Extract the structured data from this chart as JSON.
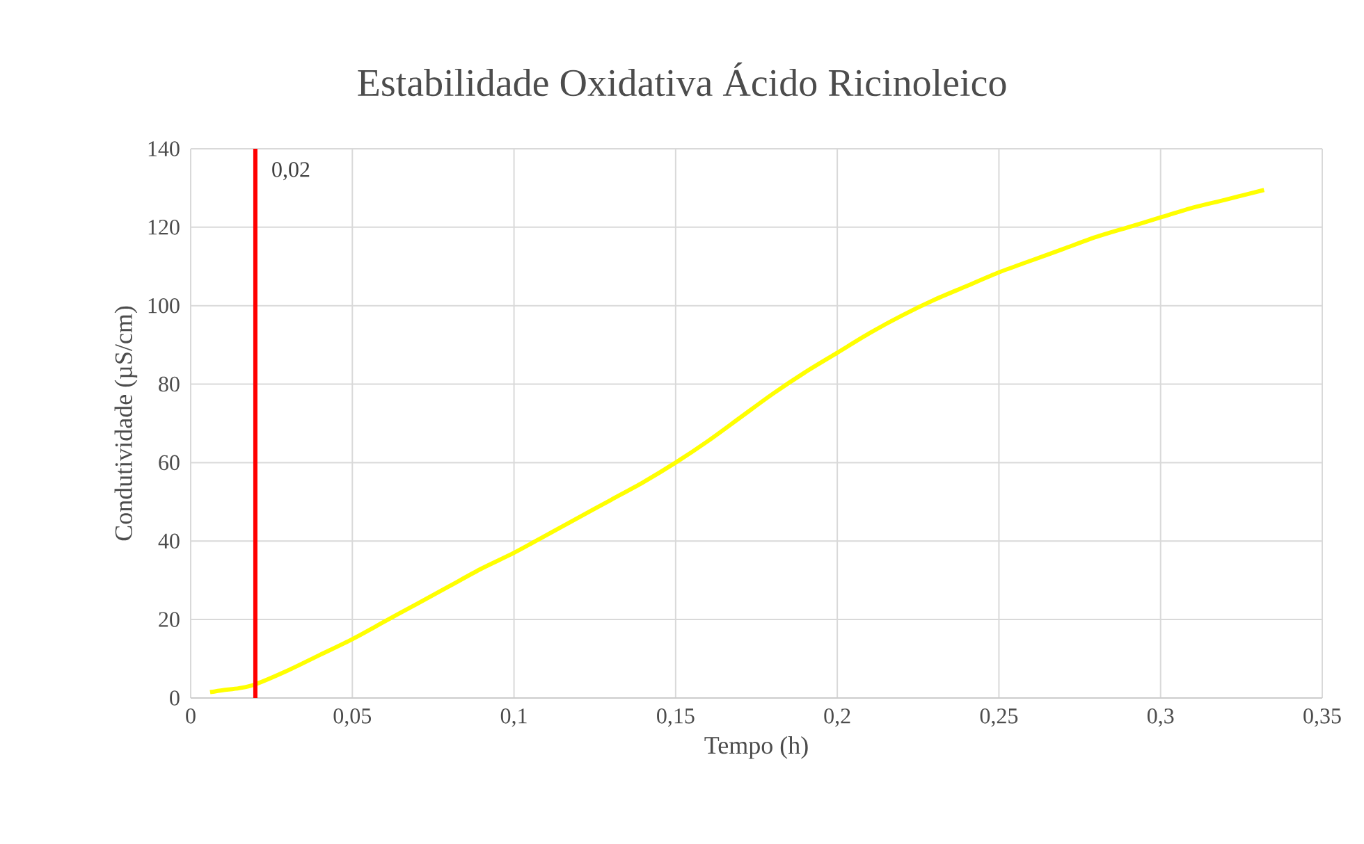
{
  "chart_data": {
    "type": "line",
    "title": "Estabilidade Oxidativa Ácido Ricinoleico",
    "xlabel": "Tempo (h)",
    "ylabel": "Condutividade (µS/cm)",
    "x": [
      0.006,
      0.01,
      0.015,
      0.02,
      0.03,
      0.04,
      0.05,
      0.06,
      0.07,
      0.08,
      0.09,
      0.1,
      0.11,
      0.12,
      0.13,
      0.14,
      0.15,
      0.16,
      0.17,
      0.18,
      0.19,
      0.2,
      0.21,
      0.22,
      0.23,
      0.24,
      0.25,
      0.26,
      0.27,
      0.28,
      0.29,
      0.3,
      0.31,
      0.32,
      0.332
    ],
    "values": [
      1.5,
      2,
      2.5,
      3.5,
      7,
      11,
      15,
      19.5,
      24,
      28.5,
      33,
      37,
      41.5,
      46,
      50.5,
      55,
      60,
      65.5,
      71.5,
      77.5,
      83,
      88,
      93,
      97.5,
      101.5,
      105,
      108.5,
      111.5,
      114.5,
      117.5,
      120,
      122.5,
      125,
      127,
      129.5
    ],
    "color": "#ffff00",
    "xlim": [
      0,
      0.35
    ],
    "ylim": [
      0,
      140
    ],
    "xticks": [
      0,
      {
        "value": 0.05,
        "label": "0,05"
      },
      {
        "value": 0.1,
        "label": "0,1"
      },
      {
        "value": 0.15,
        "label": "0,15"
      },
      {
        "value": 0.2,
        "label": "0,2"
      },
      {
        "value": 0.25,
        "label": "0,25"
      },
      {
        "value": 0.3,
        "label": "0,3"
      },
      {
        "value": 0.35,
        "label": "0,35"
      }
    ],
    "yticks": [
      0,
      20,
      40,
      60,
      80,
      100,
      120,
      140
    ],
    "grid": true,
    "ref_lines": [
      {
        "axis": "x",
        "value": 0.02,
        "label": "0,02",
        "color": "#ff0000"
      }
    ]
  }
}
